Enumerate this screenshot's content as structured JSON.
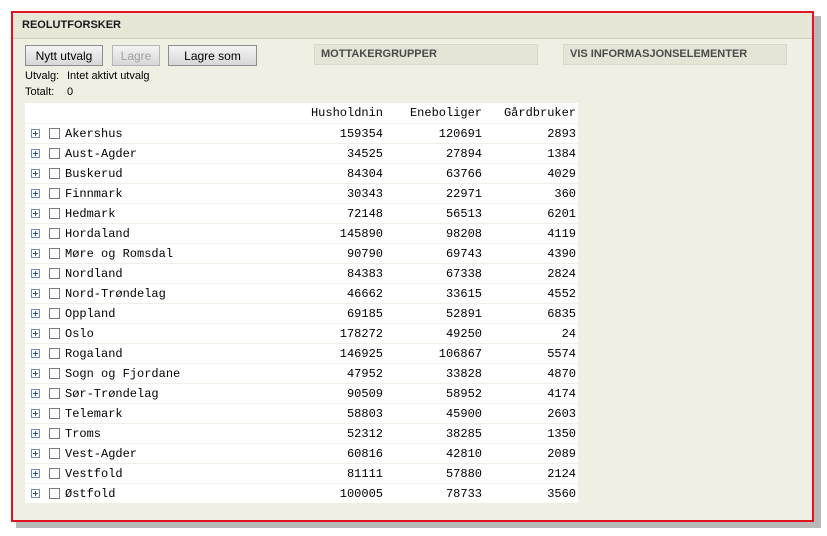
{
  "window": {
    "title": "REOLUTFORSKER"
  },
  "toolbar": {
    "new_selection_label": "Nytt utvalg",
    "save_label": "Lagre",
    "save_as_label": "Lagre som"
  },
  "panels": {
    "recipients_title": "MOTTAKERGRUPPER",
    "info_elements_title": "VIS INFORMASJONSELEMENTER"
  },
  "status": {
    "selection_label": "Utvalg:",
    "selection_value": "Intet aktivt utvalg",
    "total_label": "Totalt:",
    "total_value": "0"
  },
  "table": {
    "columns": [
      "Husholdnin",
      "Eneboliger",
      "Gårdbruker"
    ],
    "rows": [
      {
        "name": "Akershus",
        "households": "159354",
        "detached": "120691",
        "farms": "2893"
      },
      {
        "name": "Aust-Agder",
        "households": "34525",
        "detached": "27894",
        "farms": "1384"
      },
      {
        "name": "Buskerud",
        "households": "84304",
        "detached": "63766",
        "farms": "4029"
      },
      {
        "name": "Finnmark",
        "households": "30343",
        "detached": "22971",
        "farms": "360"
      },
      {
        "name": "Hedmark",
        "households": "72148",
        "detached": "56513",
        "farms": "6201"
      },
      {
        "name": "Hordaland",
        "households": "145890",
        "detached": "98208",
        "farms": "4119"
      },
      {
        "name": "Møre og Romsdal",
        "households": "90790",
        "detached": "69743",
        "farms": "4390"
      },
      {
        "name": "Nordland",
        "households": "84383",
        "detached": "67338",
        "farms": "2824"
      },
      {
        "name": "Nord-Trøndelag",
        "households": "46662",
        "detached": "33615",
        "farms": "4552"
      },
      {
        "name": "Oppland",
        "households": "69185",
        "detached": "52891",
        "farms": "6835"
      },
      {
        "name": "Oslo",
        "households": "178272",
        "detached": "49250",
        "farms": "24"
      },
      {
        "name": "Rogaland",
        "households": "146925",
        "detached": "106867",
        "farms": "5574"
      },
      {
        "name": "Sogn og Fjordane",
        "households": "47952",
        "detached": "33828",
        "farms": "4870"
      },
      {
        "name": "Sør-Trøndelag",
        "households": "90509",
        "detached": "58952",
        "farms": "4174"
      },
      {
        "name": "Telemark",
        "households": "58803",
        "detached": "45900",
        "farms": "2603"
      },
      {
        "name": "Troms",
        "households": "52312",
        "detached": "38285",
        "farms": "1350"
      },
      {
        "name": "Vest-Agder",
        "households": "60816",
        "detached": "42810",
        "farms": "2089"
      },
      {
        "name": "Vestfold",
        "households": "81111",
        "detached": "57880",
        "farms": "2124"
      },
      {
        "name": "Østfold",
        "households": "100005",
        "detached": "78733",
        "farms": "3560"
      }
    ]
  }
}
